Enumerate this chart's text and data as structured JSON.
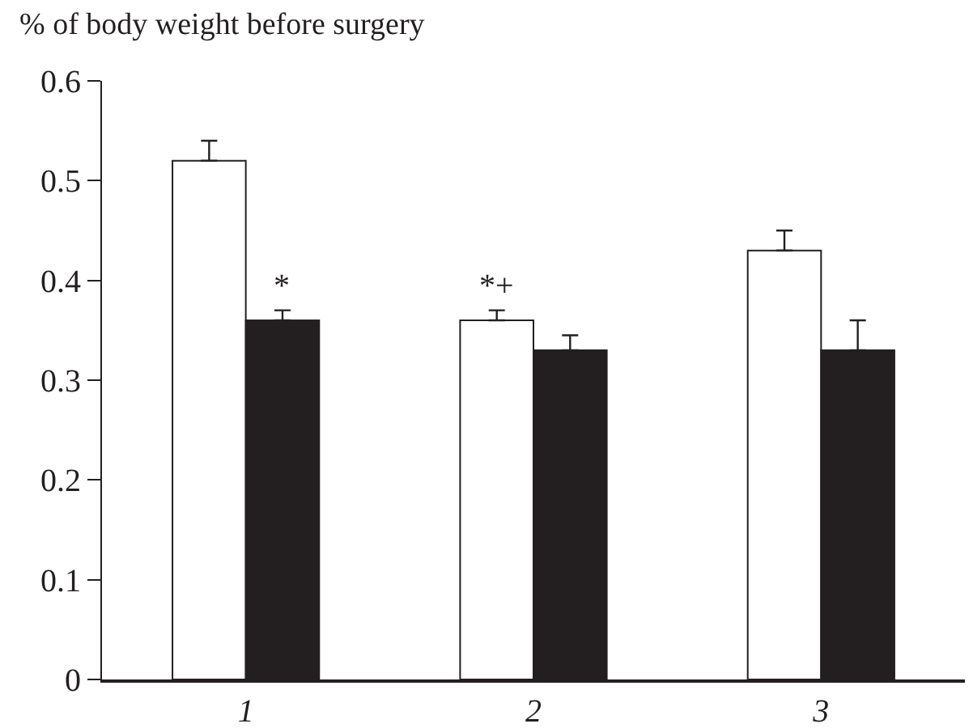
{
  "chart_data": {
    "type": "bar",
    "ylabel": "% of body weight before surgery",
    "categories": [
      "1",
      "2",
      "3"
    ],
    "series": [
      {
        "color": "#ffffff",
        "values": [
          0.52,
          0.36,
          0.43
        ],
        "errors": [
          [
            0.52,
            0.54
          ],
          [
            0.36,
            0.37
          ],
          [
            0.43,
            0.45
          ]
        ]
      },
      {
        "color": "#231f20",
        "values": [
          0.36,
          0.33,
          0.33
        ],
        "errors": [
          [
            0.36,
            0.37
          ],
          [
            0.33,
            0.345
          ],
          [
            0.33,
            0.36
          ]
        ]
      }
    ],
    "ylim": [
      0,
      0.6
    ],
    "yticks": [
      0,
      0.1,
      0.2,
      0.3,
      0.4,
      0.5,
      0.6
    ],
    "grid": false,
    "annotations": [
      {
        "text": "*",
        "x": "1",
        "y": 0.36
      },
      {
        "text": "*+",
        "x": "2",
        "y": 0.36
      }
    ]
  }
}
